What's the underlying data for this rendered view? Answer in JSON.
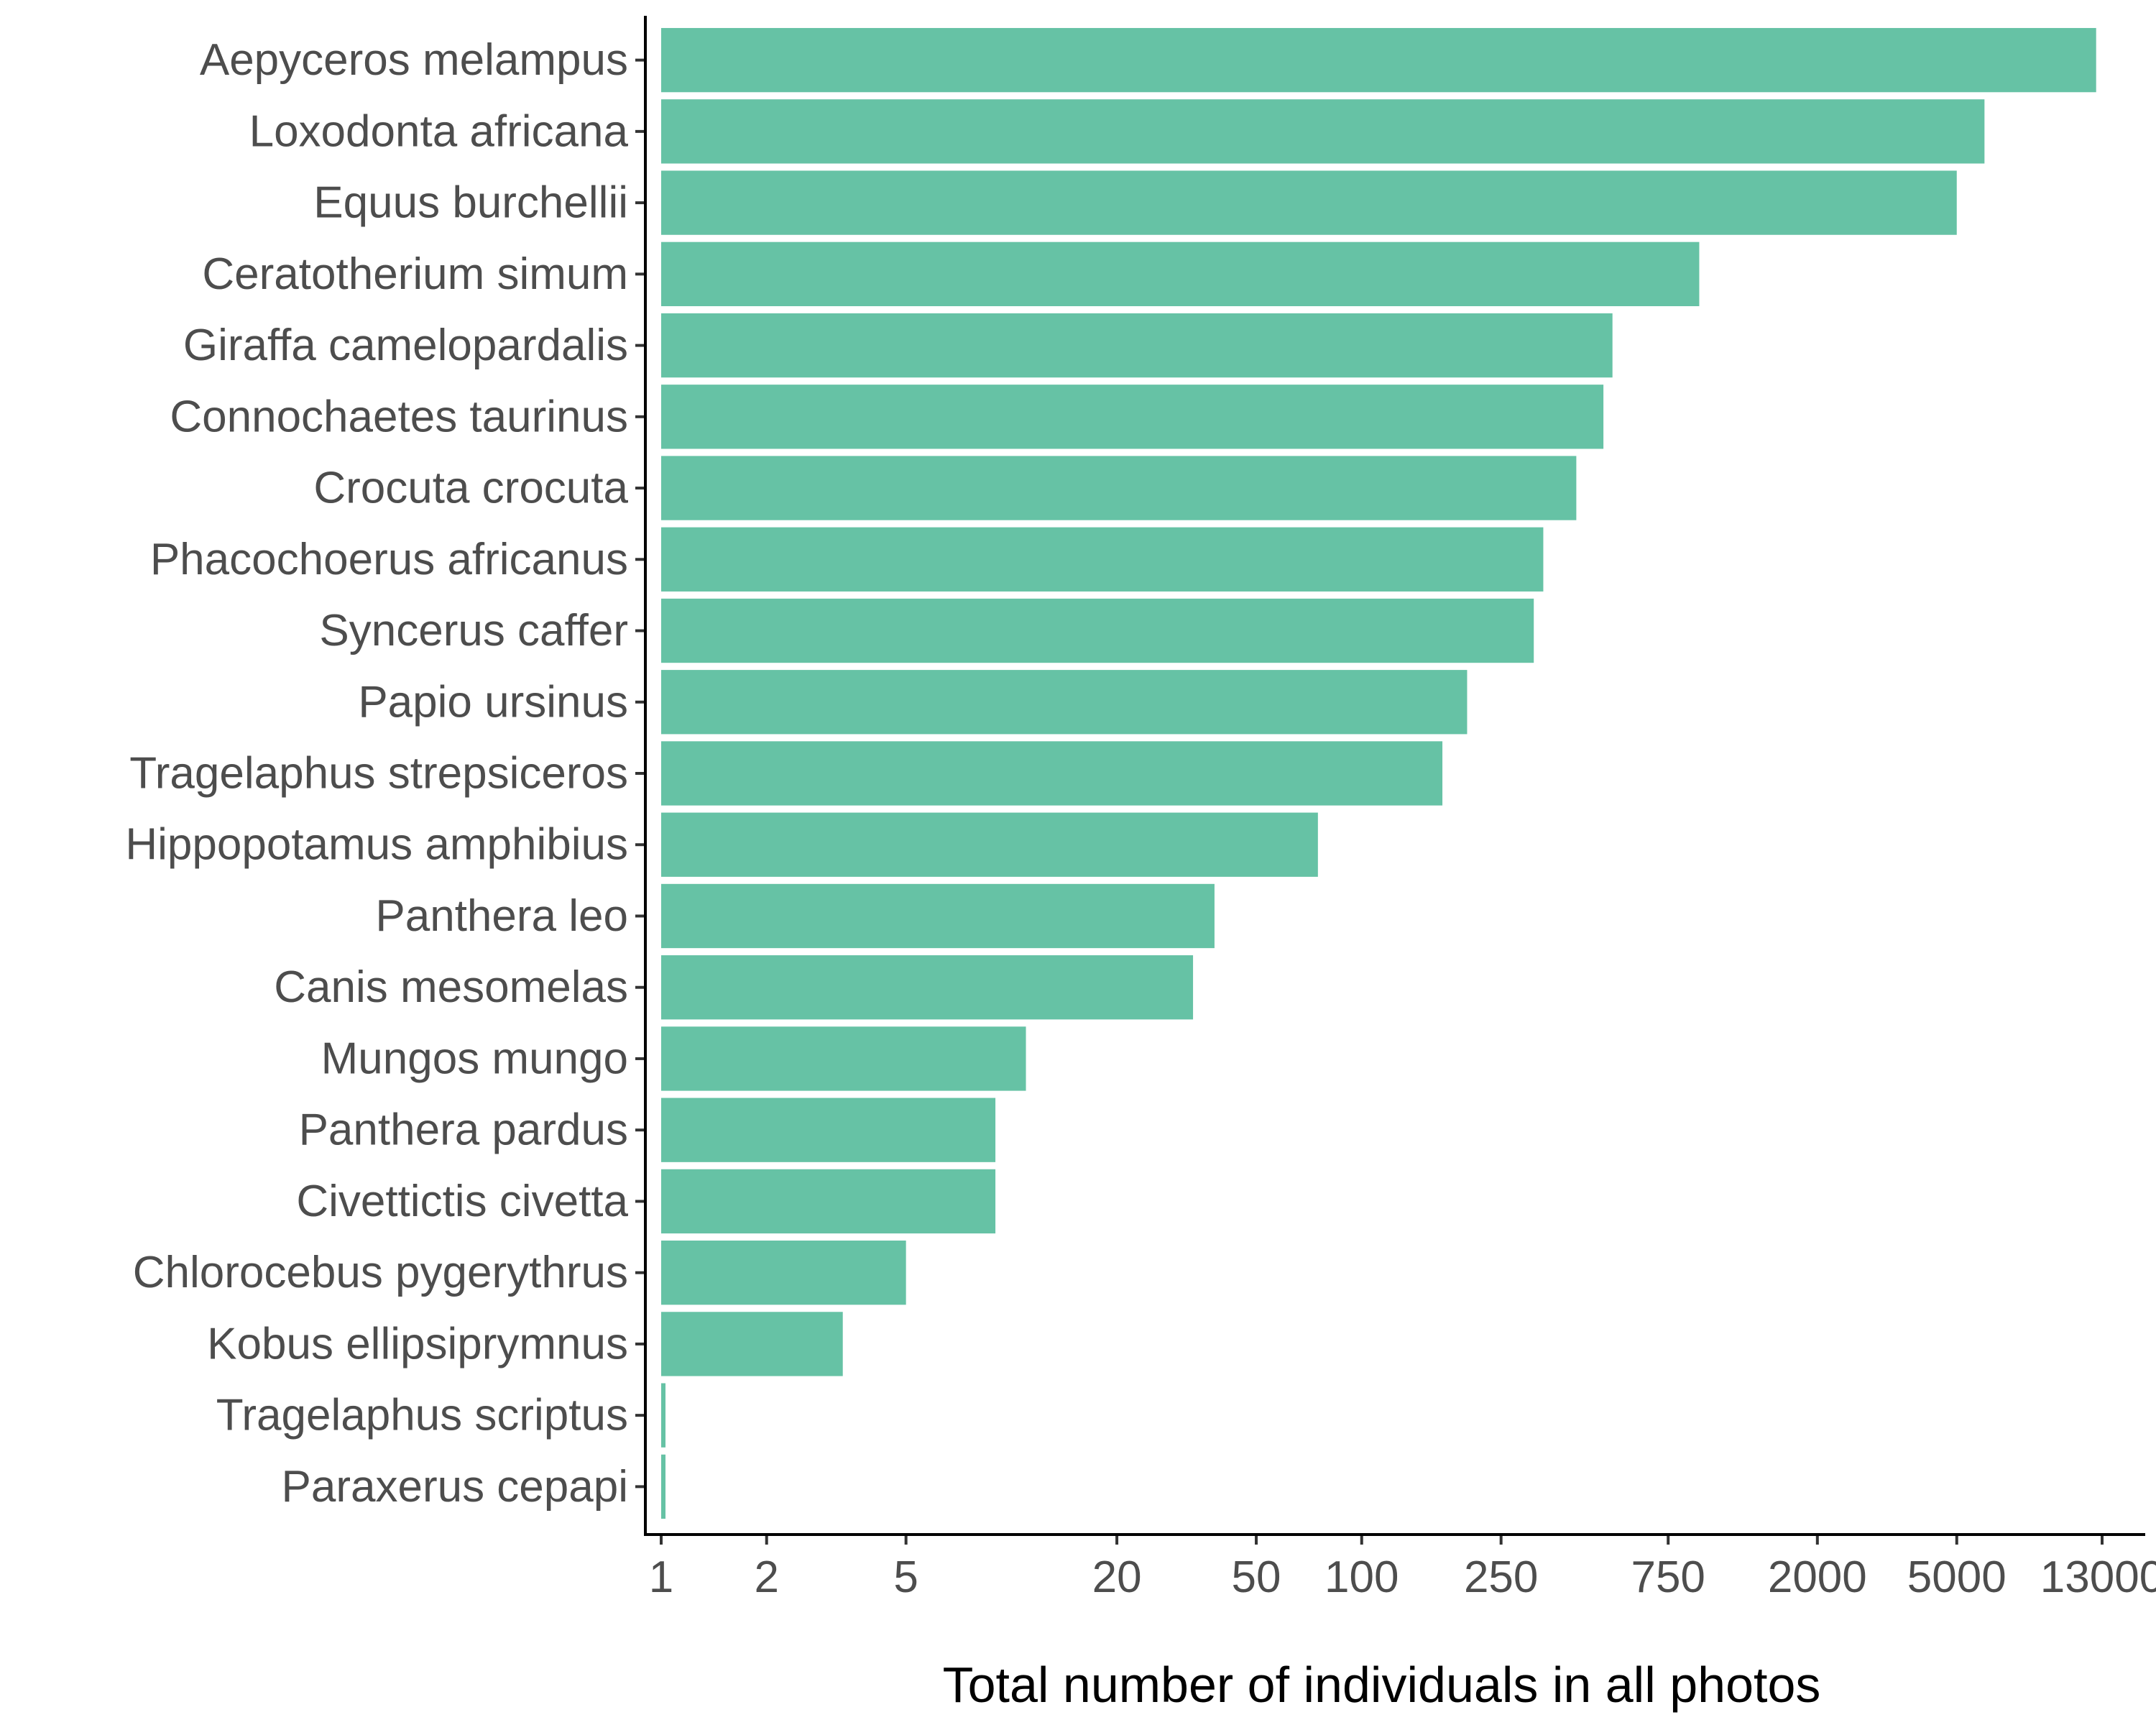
{
  "chart_data": {
    "type": "bar",
    "orientation": "horizontal",
    "title": "",
    "xlabel": "Total number of individuals in all photos",
    "ylabel": "",
    "x_scale": "log",
    "xlim": [
      1,
      13000
    ],
    "x_ticks": [
      1,
      2,
      5,
      20,
      50,
      100,
      250,
      750,
      2000,
      5000,
      13000
    ],
    "x_tick_labels": [
      "1",
      "2",
      "5",
      "20",
      "50",
      "100",
      "250",
      "750",
      "2000",
      "5000",
      "13000"
    ],
    "grid": false,
    "legend": "none",
    "bar_color": "#66c2a5",
    "categories": [
      "Aepyceros melampus",
      "Loxodonta africana",
      "Equus burchellii",
      "Ceratotherium simum",
      "Giraffa camelopardalis",
      "Connochaetes taurinus",
      "Crocuta crocuta",
      "Phacochoerus africanus",
      "Syncerus caffer",
      "Papio ursinus",
      "Tragelaphus strepsiceros",
      "Hippopotamus amphibius",
      "Panthera leo",
      "Canis mesomelas",
      "Mungos mungo",
      "Panthera pardus",
      "Civettictis civetta",
      "Chlorocebus pygerythrus",
      "Kobus ellipsiprymnus",
      "Tragelaphus scriptus",
      "Paraxerus cepapi"
    ],
    "values": [
      12500,
      6000,
      5000,
      920,
      520,
      490,
      410,
      330,
      310,
      200,
      170,
      75,
      38,
      33,
      11,
      9,
      9,
      5,
      3.3,
      1,
      1
    ]
  }
}
